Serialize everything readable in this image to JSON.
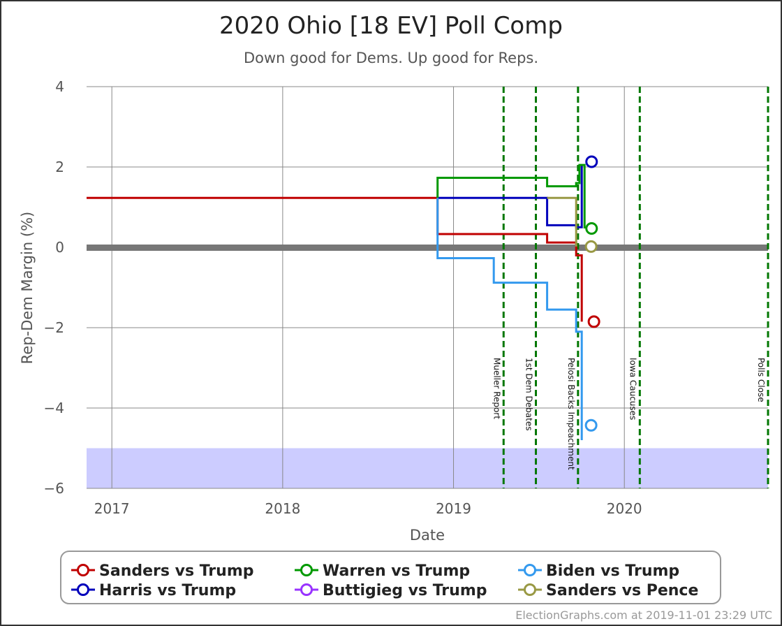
{
  "footer": "ElectionGraphs.com at 2019-11-01 23:29 UTC",
  "chart_data": {
    "type": "line",
    "title": "2020 Ohio [18 EV] Poll Comp",
    "subtitle": "Down good for Dems. Up good for Reps.",
    "xlabel": "Date",
    "ylabel": "Rep-Dem Margin (%)",
    "xlim": [
      "2016-11-08",
      "2020-11-03"
    ],
    "ylim": [
      -6,
      4
    ],
    "x_ticks": [
      {
        "date": "2017-01-01",
        "label": "2017"
      },
      {
        "date": "2018-01-01",
        "label": "2018"
      },
      {
        "date": "2019-01-01",
        "label": "2019"
      },
      {
        "date": "2020-01-01",
        "label": "2020"
      }
    ],
    "y_ticks": [
      {
        "value": 4,
        "label": "4"
      },
      {
        "value": 2,
        "label": "2"
      },
      {
        "value": 0,
        "label": "0"
      },
      {
        "value": -2,
        "label": "−2"
      },
      {
        "value": -4,
        "label": "−4"
      },
      {
        "value": -6,
        "label": "−6"
      }
    ],
    "grid": true,
    "zero_line": 0,
    "shaded_band": {
      "from": -6,
      "to": -5,
      "color": "#ccccff"
    },
    "events": [
      {
        "date": "2019-04-18",
        "label": "Mueller Report"
      },
      {
        "date": "2019-06-26",
        "label": "1st Dem Debates"
      },
      {
        "date": "2019-09-24",
        "label": "Pelosi Backs Impeachment"
      },
      {
        "date": "2020-02-03",
        "label": "Iowa Caucuses"
      },
      {
        "date": "2020-11-03",
        "label": "Polls Close"
      }
    ],
    "legend_position": "bottom",
    "series": [
      {
        "name": "Sanders vs Trump",
        "color": "#c00000",
        "points": [
          [
            "2016-11-08",
            1.23
          ],
          [
            "2018-11-28",
            1.23
          ],
          [
            "2018-11-28",
            0.33
          ],
          [
            "2019-07-20",
            0.33
          ],
          [
            "2019-07-20",
            0.12
          ],
          [
            "2019-09-20",
            0.12
          ],
          [
            "2019-09-20",
            -0.2
          ],
          [
            "2019-10-02",
            -0.2
          ],
          [
            "2019-10-02",
            -1.85
          ]
        ],
        "end": [
          "2019-10-28",
          -1.85
        ]
      },
      {
        "name": "Harris vs Trump",
        "color": "#0000bb",
        "points": [
          [
            "2018-11-28",
            1.23
          ],
          [
            "2019-07-20",
            1.23
          ],
          [
            "2019-07-20",
            0.55
          ],
          [
            "2019-09-20",
            0.55
          ],
          [
            "2019-09-20",
            0.5
          ],
          [
            "2019-10-02",
            0.5
          ],
          [
            "2019-10-02",
            2.05
          ]
        ],
        "end": [
          "2019-10-23",
          2.13
        ]
      },
      {
        "name": "Warren vs Trump",
        "color": "#009900",
        "points": [
          [
            "2018-11-28",
            1.23
          ],
          [
            "2018-11-28",
            1.73
          ],
          [
            "2019-07-20",
            1.73
          ],
          [
            "2019-07-20",
            1.52
          ],
          [
            "2019-09-20",
            1.52
          ],
          [
            "2019-09-20",
            1.6
          ],
          [
            "2019-09-27",
            1.6
          ],
          [
            "2019-09-27",
            2.05
          ],
          [
            "2019-10-08",
            2.05
          ],
          [
            "2019-10-08",
            0.47
          ]
        ],
        "end": [
          "2019-10-23",
          0.47
        ]
      },
      {
        "name": "Buttigieg vs Trump",
        "color": "#9933ff",
        "points": []
      },
      {
        "name": "Biden vs Trump",
        "color": "#3399ee",
        "points": [
          [
            "2018-11-28",
            1.23
          ],
          [
            "2018-11-28",
            -0.27
          ],
          [
            "2019-03-28",
            -0.27
          ],
          [
            "2019-03-28",
            -0.88
          ],
          [
            "2019-07-20",
            -0.88
          ],
          [
            "2019-07-20",
            -1.55
          ],
          [
            "2019-09-20",
            -1.55
          ],
          [
            "2019-09-20",
            -2.1
          ],
          [
            "2019-10-02",
            -2.1
          ],
          [
            "2019-10-02",
            -4.8
          ]
        ],
        "end": [
          "2019-10-22",
          -4.43
        ]
      },
      {
        "name": "Sanders vs Pence",
        "color": "#999944",
        "points": [
          [
            "2019-07-20",
            1.23
          ],
          [
            "2019-09-20",
            1.23
          ],
          [
            "2019-09-20",
            0.02
          ]
        ],
        "end": [
          "2019-10-22",
          0.02
        ]
      }
    ]
  }
}
